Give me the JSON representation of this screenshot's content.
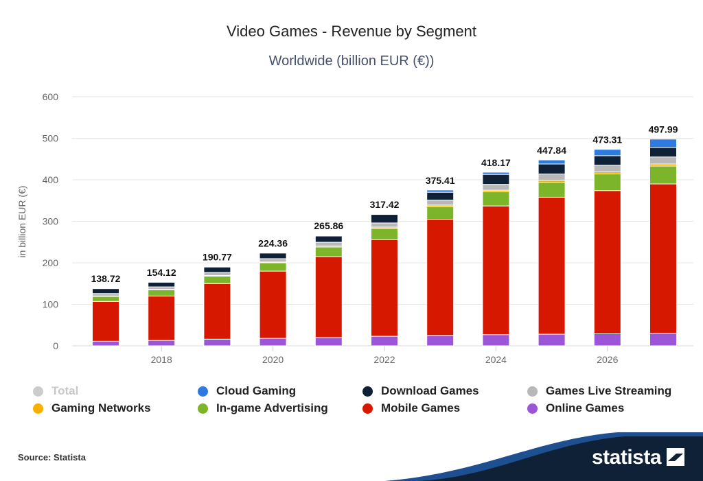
{
  "header": {
    "title": "Video Games - Revenue by Segment",
    "subtitle": "Worldwide (billion EUR (€))"
  },
  "footer": {
    "source": "Source: Statista",
    "brand": "statista"
  },
  "colors": {
    "Online Games": "#9b55d6",
    "Mobile Games": "#d61800",
    "In-game Advertising": "#7db52a",
    "Gaming Networks": "#f6b000",
    "Games Live Streaming": "#b8b8b8",
    "Download Games": "#0f2137",
    "Cloud Gaming": "#2d7be0",
    "Total": "#cccccc",
    "brand_navy": "#0f2137"
  },
  "legend": [
    {
      "name": "Total",
      "color": "#cccccc",
      "muted": true
    },
    {
      "name": "Cloud Gaming",
      "color": "#2d7be0",
      "muted": false
    },
    {
      "name": "Download Games",
      "color": "#0f2137",
      "muted": false
    },
    {
      "name": "Games Live Streaming",
      "color": "#b8b8b8",
      "muted": false
    },
    {
      "name": "Gaming Networks",
      "color": "#f6b000",
      "muted": false
    },
    {
      "name": "In-game Advertising",
      "color": "#7db52a",
      "muted": false
    },
    {
      "name": "Mobile Games",
      "color": "#d61800",
      "muted": false
    },
    {
      "name": "Online Games",
      "color": "#9b55d6",
      "muted": false
    }
  ],
  "chart_data": {
    "type": "bar",
    "stacked": true,
    "ylabel": "in billion EUR (€)",
    "ylim": [
      0,
      600
    ],
    "yticks": [
      0,
      100,
      200,
      300,
      400,
      500,
      600
    ],
    "x": [
      2017,
      2018,
      2019,
      2020,
      2021,
      2022,
      2023,
      2024,
      2025,
      2026,
      2027
    ],
    "xtick_labels": [
      "2018",
      "2020",
      "2022",
      "2024",
      "2026"
    ],
    "grid": true,
    "legend_position": "bottom",
    "totals": [
      138.72,
      154.12,
      190.77,
      224.36,
      265.86,
      317.42,
      375.41,
      418.17,
      447.84,
      473.31,
      497.99
    ],
    "series": [
      {
        "name": "Online Games",
        "values": [
          11,
          13,
          16,
          18,
          20,
          23,
          25,
          27,
          28,
          29,
          30
        ]
      },
      {
        "name": "Mobile Games",
        "values": [
          96,
          107,
          134,
          162,
          195,
          233,
          280,
          310,
          330,
          345,
          360
        ]
      },
      {
        "name": "In-game Advertising",
        "values": [
          12,
          15,
          18,
          20,
          23,
          27,
          30,
          34,
          36,
          40,
          43
        ]
      },
      {
        "name": "Gaming Networks",
        "values": [
          1,
          1,
          1.5,
          2,
          2.5,
          3,
          4,
          4,
          5,
          5,
          5
        ]
      },
      {
        "name": "Games Live Streaming",
        "values": [
          6,
          6,
          7,
          8,
          9,
          10,
          12,
          14,
          15,
          16,
          17
        ]
      },
      {
        "name": "Download Games",
        "values": [
          12.5,
          11.5,
          13.5,
          14,
          15,
          20.5,
          19,
          24,
          24,
          23,
          23
        ]
      },
      {
        "name": "Cloud Gaming",
        "values": [
          0.22,
          0.62,
          0.77,
          0.36,
          1.36,
          0.92,
          5.41,
          5.17,
          9.84,
          15.31,
          19.99
        ]
      }
    ]
  }
}
